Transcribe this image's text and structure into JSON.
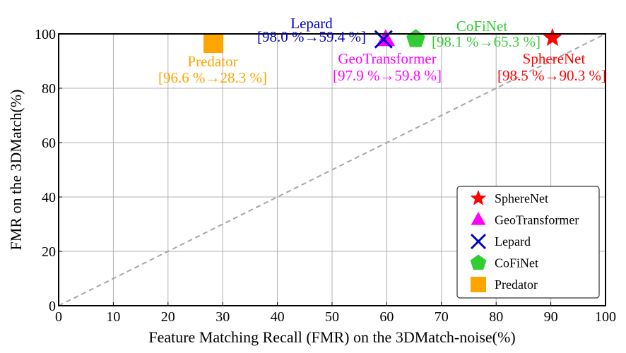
{
  "chart_data": {
    "type": "scatter",
    "xlabel": "Feature Matching Recall (FMR) on the 3DMatch-noise(%)",
    "ylabel": "FMR on the 3DMatch(%)",
    "xlim": [
      0,
      100
    ],
    "ylim": [
      0,
      100
    ],
    "xticks": [
      "0",
      "10",
      "20",
      "30",
      "40",
      "50",
      "60",
      "70",
      "80",
      "90",
      "100"
    ],
    "yticks": [
      "0",
      "20",
      "40",
      "60",
      "80",
      "100"
    ],
    "grid": true,
    "legend_position": "bottom-right",
    "diagonal": {
      "from": [
        0,
        0
      ],
      "to": [
        100,
        100
      ],
      "style": "dashed",
      "color": "#a6a6a6"
    },
    "series": [
      {
        "name": "SphereNet",
        "marker": "star",
        "color": "#ff0000",
        "x": 90.3,
        "y": 98.5,
        "label_name": "SphereNet",
        "label_values": "[98.5 %→90.3 %]"
      },
      {
        "name": "GeoTransformer",
        "marker": "triangle",
        "color": "#ff00ff",
        "x": 59.8,
        "y": 97.9,
        "label_name": "GeoTransformer",
        "label_values": "[97.9 %→59.8 %]"
      },
      {
        "name": "Lepard",
        "marker": "x",
        "color": "#0000cc",
        "x": 59.4,
        "y": 98.0,
        "label_name": "Lepard",
        "label_values": "[98.0 %→59.4 %]"
      },
      {
        "name": "CoFiNet",
        "marker": "pentagon",
        "color": "#33cc33",
        "x": 65.3,
        "y": 98.1,
        "label_name": "CoFiNet",
        "label_values": "[98.1 %→65.3 %]"
      },
      {
        "name": "Predator",
        "marker": "square",
        "color": "#ffa500",
        "x": 28.3,
        "y": 96.6,
        "label_name": "Predator",
        "label_values": "[96.6 %→28.3 %]"
      }
    ]
  }
}
